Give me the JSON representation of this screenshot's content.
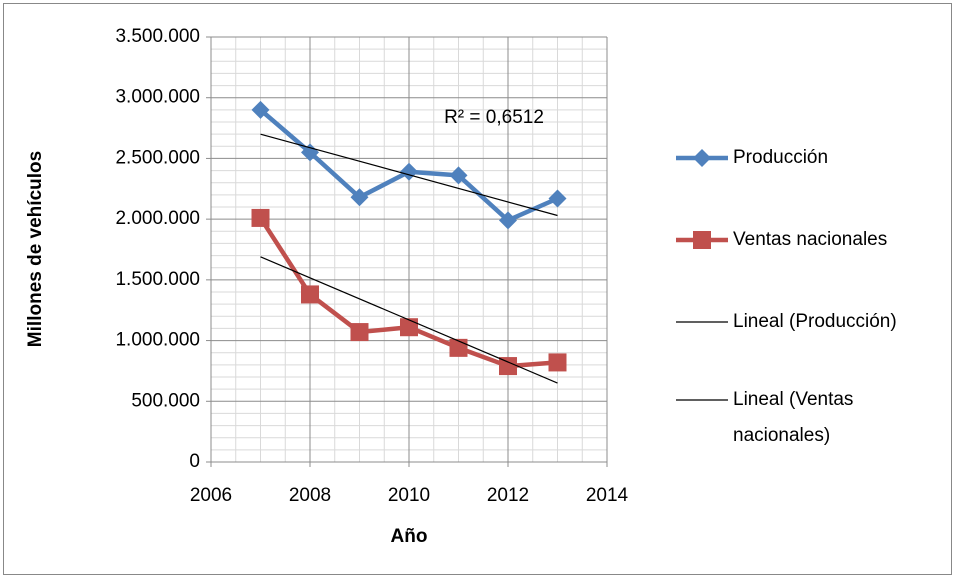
{
  "chart_data": {
    "type": "line",
    "x_label": "Año",
    "y_label": "Millones de vehículos",
    "annotation": "R² = 0,6512",
    "x": [
      2007,
      2008,
      2009,
      2010,
      2011,
      2012,
      2013
    ],
    "series": [
      {
        "name": "Producción",
        "color": "#4f81bd",
        "marker": "diamond",
        "values": [
          2900000,
          2550000,
          2180000,
          2390000,
          2360000,
          1990000,
          2170000
        ]
      },
      {
        "name": "Ventas nacionales",
        "color": "#c0504d",
        "marker": "square",
        "values": [
          2010000,
          1380000,
          1070000,
          1110000,
          940000,
          790000,
          820000
        ]
      },
      {
        "name": "Lineal (Producción)",
        "color": "#000000",
        "marker": "none",
        "x": [
          2007,
          2013
        ],
        "values": [
          2700000,
          2030000
        ]
      },
      {
        "name": "Lineal (Ventas nacionales)",
        "color": "#000000",
        "marker": "none",
        "x": [
          2007,
          2013
        ],
        "values": [
          1690000,
          650000
        ]
      }
    ],
    "xlim": [
      2006,
      2014
    ],
    "xticks": [
      2006,
      2008,
      2010,
      2012,
      2014
    ],
    "ylim": [
      0,
      3500000
    ],
    "yticks": [
      0,
      {
        "value": 500000,
        "label": "500.000"
      },
      {
        "value": 1000000,
        "label": "1.000.000"
      },
      {
        "value": 1500000,
        "label": "1.500.000"
      },
      {
        "value": 2000000,
        "label": "2.000.000"
      },
      {
        "value": 2500000,
        "label": "2.500.000"
      },
      {
        "value": 3000000,
        "label": "3.000.000"
      },
      {
        "value": 3500000,
        "label": "3.500.000"
      }
    ],
    "grid": true,
    "minor_grid": true,
    "legend": "right"
  }
}
